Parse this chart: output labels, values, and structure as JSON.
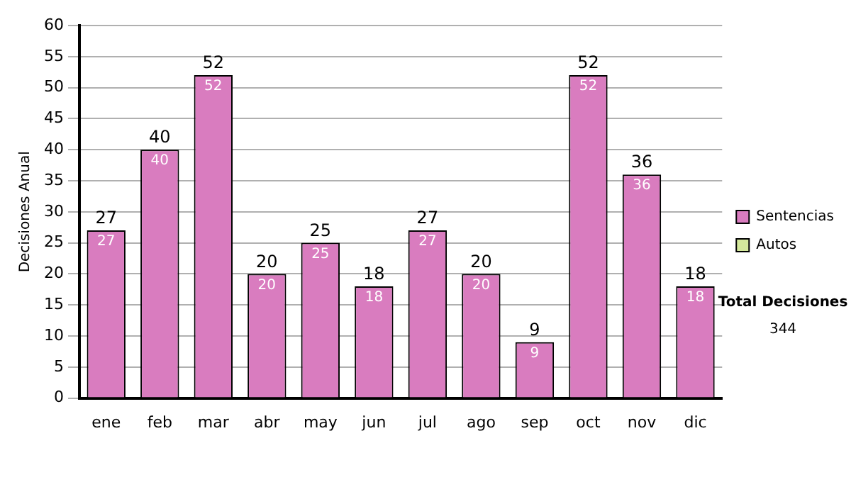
{
  "chart_data": {
    "type": "bar",
    "ylabel": "Decisiones Anual",
    "categories": [
      "ene",
      "feb",
      "mar",
      "abr",
      "may",
      "jun",
      "jul",
      "ago",
      "sep",
      "oct",
      "nov",
      "dic"
    ],
    "stacked": true,
    "series": [
      {
        "name": "Sentencias",
        "color": "#d97cbf",
        "values": [
          27,
          40,
          52,
          20,
          25,
          18,
          27,
          20,
          9,
          52,
          36,
          18
        ],
        "value_labels": [
          "27",
          "40",
          "52",
          "20",
          "25",
          "18",
          "27",
          "20",
          "9",
          "52",
          "36",
          "18"
        ]
      },
      {
        "name": "Autos",
        "color": "#d4e89c",
        "values": [
          0,
          0,
          0,
          0,
          0,
          0,
          0,
          0,
          0,
          0,
          0,
          0
        ]
      }
    ],
    "totals": [
      "27",
      "40",
      "52",
      "20",
      "25",
      "18",
      "27",
      "20",
      "9",
      "52",
      "36",
      "18"
    ],
    "ylim": [
      0,
      60
    ],
    "yticks": [
      0,
      5,
      10,
      15,
      20,
      25,
      30,
      35,
      40,
      45,
      50,
      55,
      60
    ],
    "grid": "y",
    "legend": "right",
    "annotations": [
      "Total Decisiones",
      "344"
    ]
  }
}
